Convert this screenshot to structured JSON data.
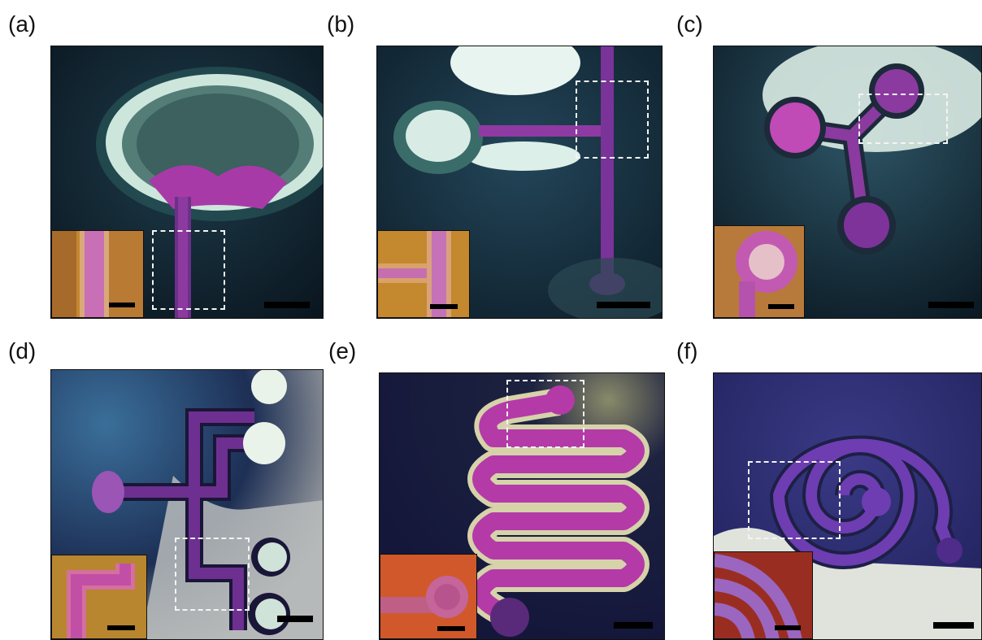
{
  "panels": [
    {
      "label": "(a)"
    },
    {
      "label": "(b)"
    },
    {
      "label": "(c)"
    },
    {
      "label": "(d)"
    },
    {
      "label": "(e)"
    },
    {
      "label": "(f)"
    }
  ],
  "colors": {
    "background_dark": "#10202c",
    "channel_magenta": "#b53ab6",
    "channel_purple": "#6b2d8f",
    "reservoir_white": "#e6f3ee",
    "inset_orange": "#c78a3a",
    "inset_red": "#b23a2a"
  }
}
